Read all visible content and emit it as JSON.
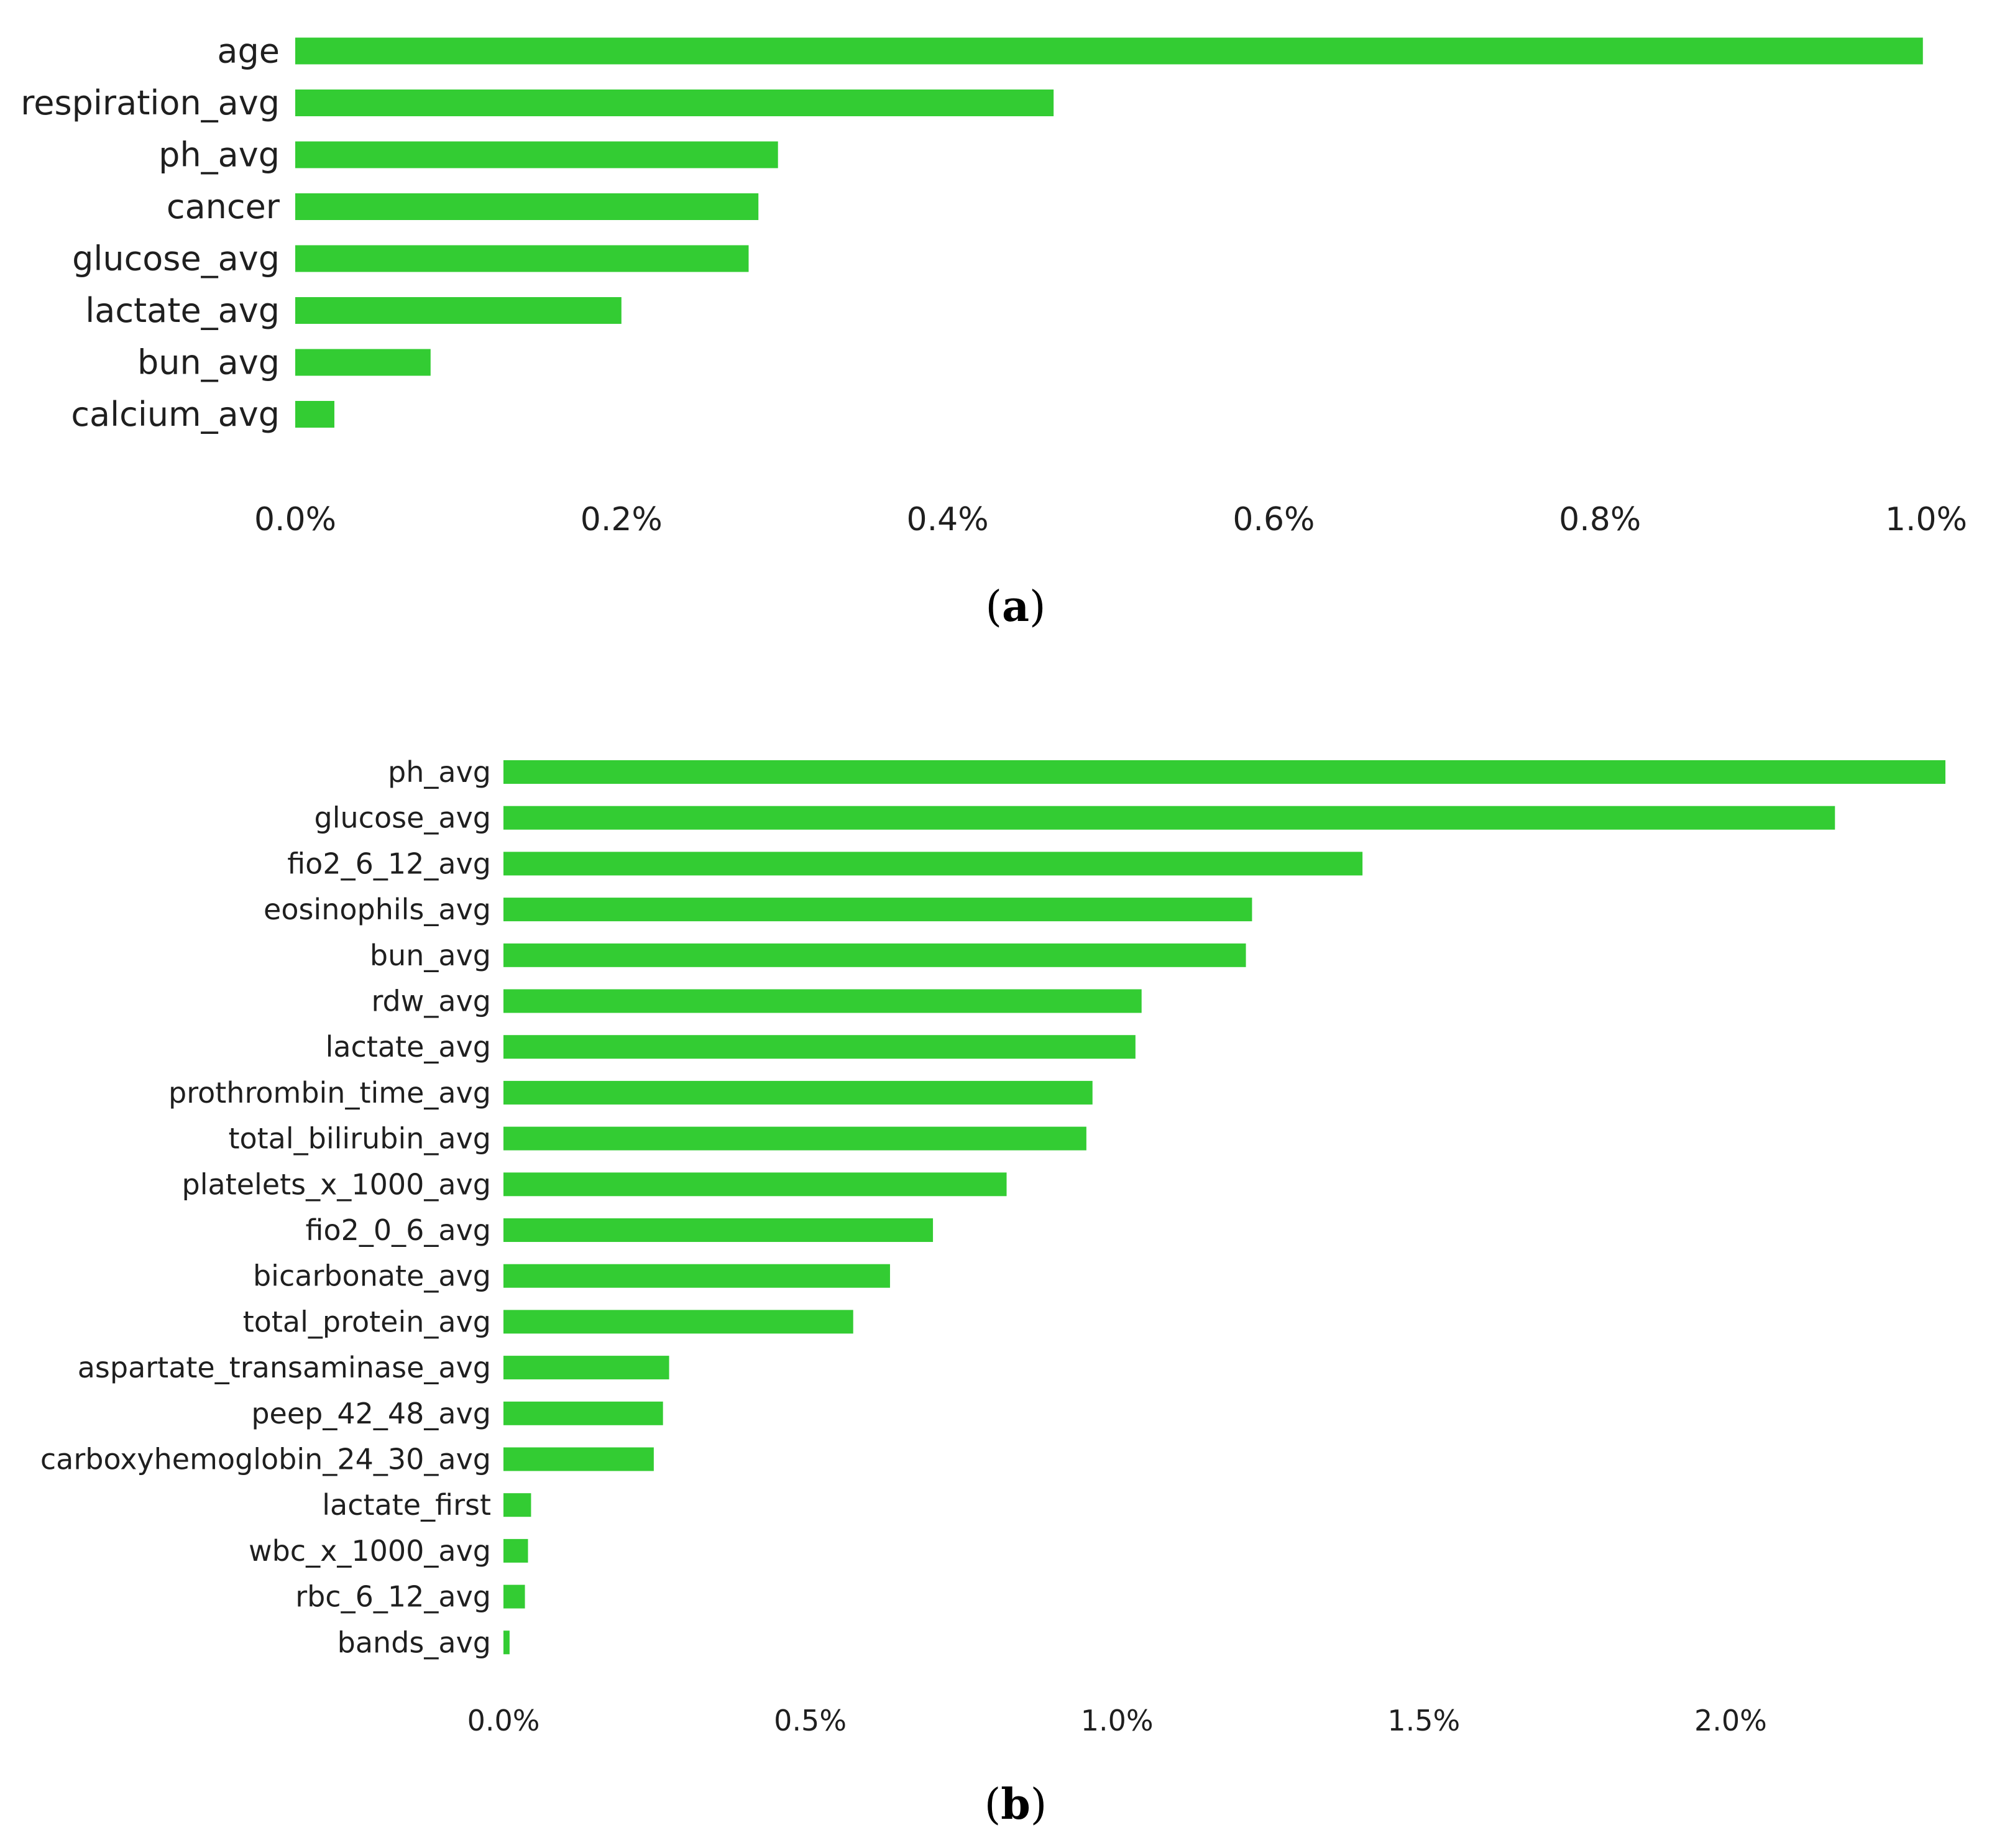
{
  "colors": {
    "bar": "#33cc33",
    "text": "#1f1f1f"
  },
  "chart_data": [
    {
      "type": "bar",
      "orientation": "horizontal",
      "panel_label": "a",
      "categories": [
        "age",
        "respiration_avg",
        "ph_avg",
        "cancer",
        "glucose_avg",
        "lactate_avg",
        "bun_avg",
        "calcium_avg"
      ],
      "values": [
        0.998,
        0.465,
        0.296,
        0.284,
        0.278,
        0.2,
        0.083,
        0.024
      ],
      "xlim": [
        0,
        1.0
      ],
      "xticks": [
        0,
        0.2,
        0.4,
        0.6,
        0.8,
        1.0
      ],
      "xtick_labels": [
        "0.0%",
        "0.2%",
        "0.4%",
        "0.6%",
        "0.8%",
        "1.0%"
      ],
      "value_unit": "%",
      "grid": false,
      "legend": false
    },
    {
      "type": "bar",
      "orientation": "horizontal",
      "panel_label": "b",
      "categories": [
        "ph_avg",
        "glucose_avg",
        "fio2_6_12_avg",
        "eosinophils_avg",
        "bun_avg",
        "rdw_avg",
        "lactate_avg",
        "prothrombin_time_avg",
        "total_bilirubin_avg",
        "platelets_x_1000_avg",
        "fio2_0_6_avg",
        "bicarbonate_avg",
        "total_protein_avg",
        "aspartate_transaminase_avg",
        "peep_42_48_avg",
        "carboxyhemoglobin_24_30_avg",
        "lactate_first",
        "wbc_x_1000_avg",
        "rbc_6_12_avg",
        "bands_avg"
      ],
      "values": [
        2.35,
        2.17,
        1.4,
        1.22,
        1.21,
        1.04,
        1.03,
        0.96,
        0.95,
        0.82,
        0.7,
        0.63,
        0.57,
        0.27,
        0.26,
        0.245,
        0.045,
        0.04,
        0.035,
        0.01
      ],
      "xlim": [
        0,
        2.35
      ],
      "xticks": [
        0,
        0.5,
        1.0,
        1.5,
        2.0
      ],
      "xtick_labels": [
        "0.0%",
        "0.5%",
        "1.0%",
        "1.5%",
        "2.0%"
      ],
      "value_unit": "%",
      "grid": false,
      "legend": false
    }
  ]
}
